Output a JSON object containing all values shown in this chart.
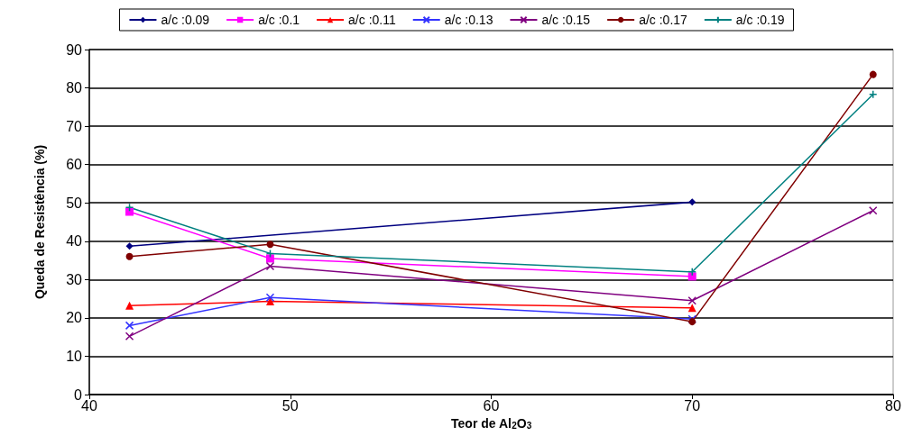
{
  "chart_data": {
    "type": "line",
    "xlabel": "Teor de Al$_{2}$O$_{3}$",
    "ylabel": "Queda de Resistência (%)",
    "xlim": [
      40,
      80
    ],
    "xticks": [
      40,
      50,
      60,
      70,
      80
    ],
    "ylim": [
      0,
      90
    ],
    "yticks": [
      0,
      10,
      20,
      30,
      40,
      50,
      60,
      70,
      80,
      90
    ],
    "grid": "y",
    "legend": "top",
    "line_style": "solid",
    "series": [
      {
        "name": "a/c :0.09",
        "color": "#000080",
        "marker": "diamond",
        "x": [
          42,
          70
        ],
        "values": [
          38.7,
          50.2
        ]
      },
      {
        "name": "a/c :0.1",
        "color": "#ff00ff",
        "marker": "square",
        "x": [
          42,
          49,
          70
        ],
        "values": [
          47.7,
          35.5,
          30.8
        ]
      },
      {
        "name": "a/c :0.11",
        "color": "#ff0000",
        "marker": "triangle",
        "x": [
          42,
          49,
          70
        ],
        "values": [
          23.2,
          24.3,
          22.6
        ]
      },
      {
        "name": "a/c :0.13",
        "color": "#3333ff",
        "marker": "cross",
        "x": [
          42,
          49,
          70
        ],
        "values": [
          18,
          25.3,
          19.7
        ]
      },
      {
        "name": "a/c :0.15",
        "color": "#800080",
        "marker": "cross",
        "x": [
          42,
          49,
          70,
          79
        ],
        "values": [
          15.2,
          33.5,
          24.5,
          48
        ]
      },
      {
        "name": "a/c :0.17",
        "color": "#800000",
        "marker": "circle",
        "x": [
          42,
          49,
          70,
          79
        ],
        "values": [
          36,
          39.2,
          19,
          83.5
        ]
      },
      {
        "name": "a/c :0.19",
        "color": "#008080",
        "marker": "plus",
        "x": [
          42,
          49,
          70,
          79
        ],
        "values": [
          48.8,
          36.8,
          32,
          78.3
        ]
      }
    ]
  }
}
